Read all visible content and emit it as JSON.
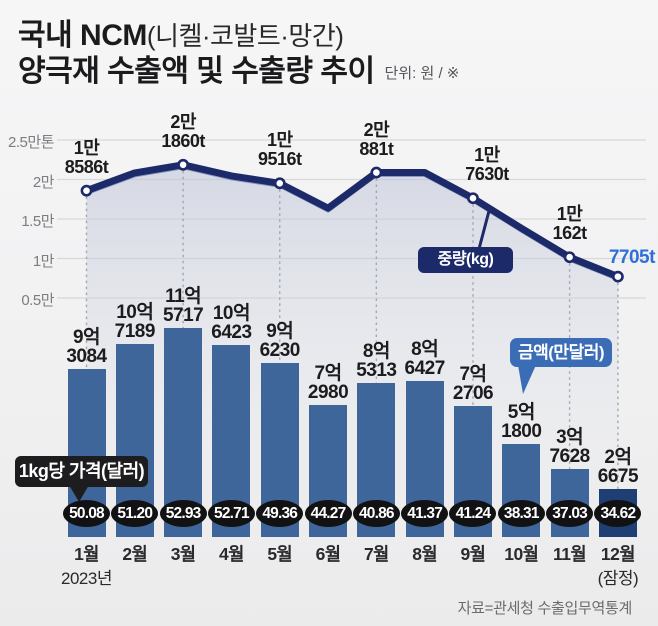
{
  "header": {
    "title_bold": "국내 NCM",
    "title_paren": "(니켈·코발트·망간)",
    "title_line2": "양극재 수출액 및 수출량 추이",
    "unit": "단위: 원 / ※"
  },
  "badges": {
    "weight": "중량(kg)",
    "amount": "금액(만달러)",
    "price": "1kg당 가격(달러)"
  },
  "footer": {
    "source": "자료=관세청 수출입무역통계"
  },
  "colors": {
    "background": "#f2f2f3",
    "grid": "#d8d8da",
    "bar": "#3f669b",
    "bar_last": "#1e3e74",
    "line": "#1d2a69",
    "line_edge": "#8d98c4",
    "area_top": "rgba(187,194,214,0.55)",
    "area_bottom": "rgba(236,237,240,0.08)",
    "dotted_guide": "#a3a7b0",
    "badge_weight_bg": "#1d2a69",
    "badge_amount_bg": "#3b6db7",
    "badge_price_bg": "#1d1d1f",
    "oval_bg": "#121214",
    "point_label": "#1c1c1e",
    "last_point_label": "#2e6fd8"
  },
  "chart_data": {
    "type": "combo (line + bar + price ovals)",
    "categories": [
      "1월",
      "2월",
      "3월",
      "4월",
      "5월",
      "6월",
      "7월",
      "8월",
      "9월",
      "10월",
      "11월",
      "12월"
    ],
    "x_axis_note_first": "2023년",
    "x_axis_note_last": "(잠정)",
    "y_axis": {
      "ticks": [
        "2.5만톤",
        "2만",
        "1.5만",
        "1만",
        "0.5만"
      ],
      "values": [
        25000,
        20000,
        15000,
        10000,
        5000
      ],
      "range": [
        0,
        25000
      ]
    },
    "series": [
      {
        "name": "중량(kg)",
        "type": "line",
        "unit": "t",
        "values": [
          18586,
          20830,
          21860,
          20450,
          19516,
          16370,
          20881,
          20890,
          17630,
          13830,
          10162,
          7705
        ],
        "estimated_indices": [
          1,
          3,
          5,
          7,
          9
        ],
        "point_labels": {
          "0": "1만|8586t",
          "2": "2만|1860t",
          "4": "1만|9516t",
          "6": "2만|881t",
          "8": "1만|7630t",
          "10": "1만|162t",
          "11": "7705t"
        }
      },
      {
        "name": "금액(만달러)",
        "type": "bar",
        "unit": "만달러",
        "values": [
          93084,
          107189,
          115717,
          106423,
          96230,
          72980,
          85313,
          86427,
          72706,
          51800,
          37628,
          26675
        ],
        "bar_labels": [
          "9억|3084",
          "10억|7189",
          "11억|5717",
          "10억|6423",
          "9억|6230",
          "7억|2980",
          "8억|5313",
          "8억|6427",
          "7억|2706",
          "5억|1800",
          "3억|7628",
          "2억|6675"
        ]
      },
      {
        "name": "1kg당 가격(달러)",
        "type": "oval-row",
        "unit": "달러",
        "values": [
          "50.08",
          "51.20",
          "52.93",
          "52.71",
          "49.36",
          "44.27",
          "40.86",
          "41.37",
          "41.24",
          "38.31",
          "37.03",
          "34.62"
        ]
      }
    ]
  }
}
